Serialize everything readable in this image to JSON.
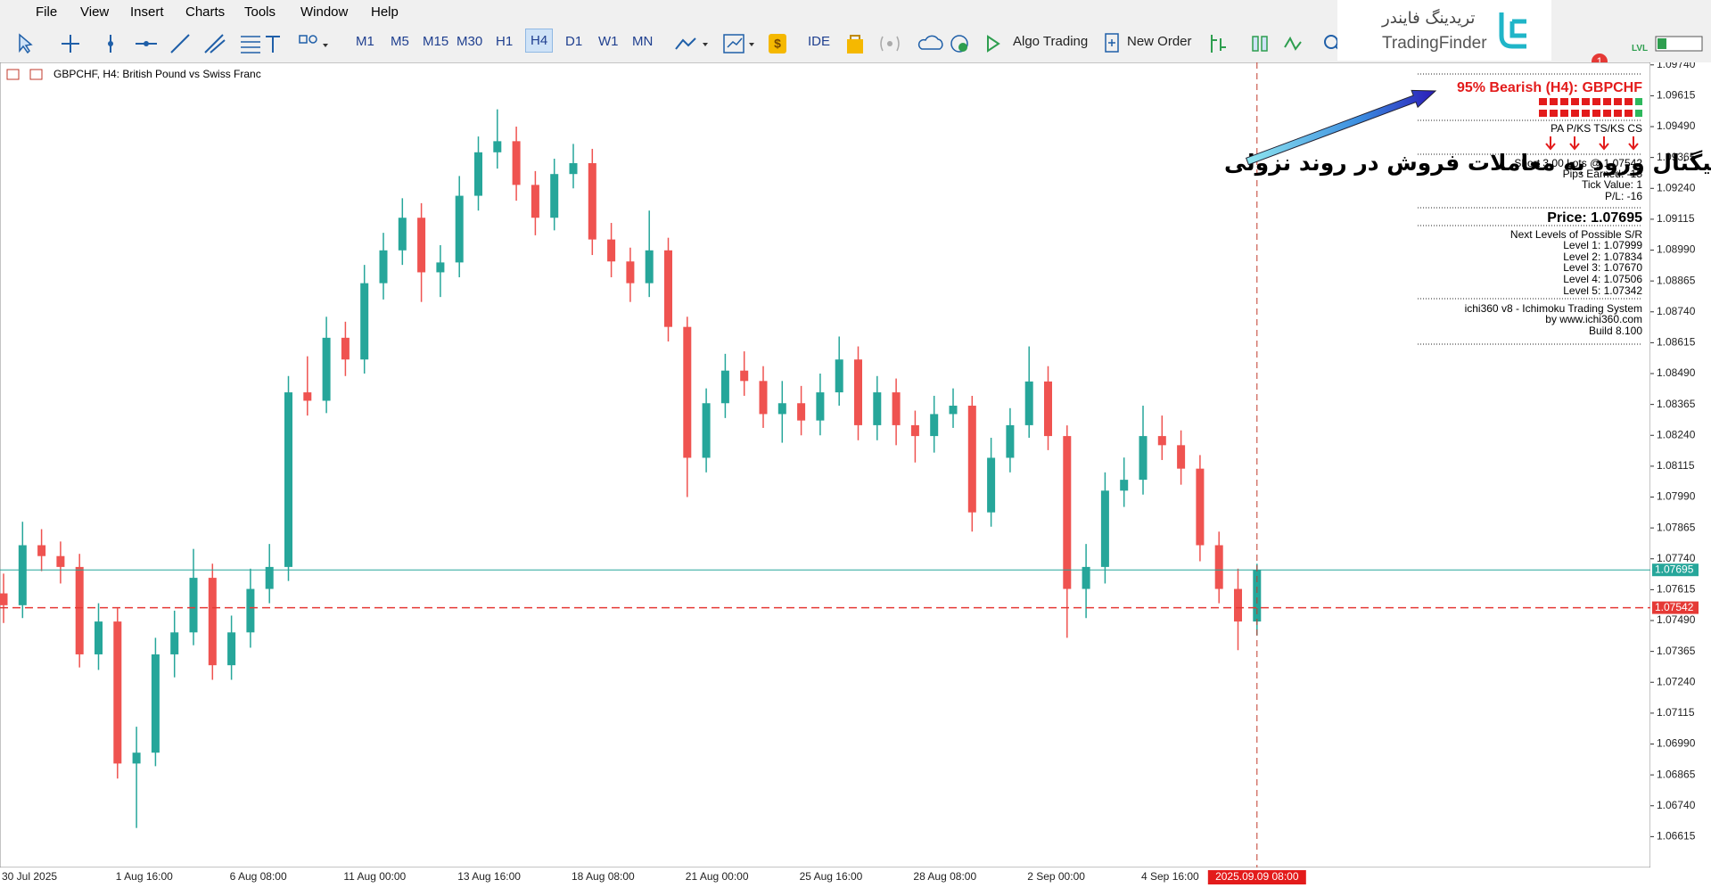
{
  "menu": [
    "File",
    "View",
    "Insert",
    "Charts",
    "Tools",
    "Window",
    "Help"
  ],
  "toolbar": {
    "timeframes": [
      "M1",
      "M5",
      "M15",
      "M30",
      "H1",
      "H4",
      "D1",
      "W1",
      "MN"
    ],
    "buttons": [
      "IDE",
      "Algo Trading",
      "New Order"
    ],
    "notification_count": 1,
    "level_label": "LVL"
  },
  "logo": {
    "persian": "تریدینگ فایندر",
    "latin": "TradingFinder"
  },
  "annotation": "سیگنال ورود به معاملات فروش در روند نزولی",
  "indicator_panel": {
    "signal": "95% Bearish (H4): GBPCHF",
    "columns": "PA P/KS TS/KS CS",
    "position": [
      "Short 3.00 Lots @ 1.07542",
      "Pips Earned: -15",
      "Tick Value: 1",
      "P/L: -16"
    ],
    "price": "Price: 1.07695",
    "levels_title": "Next Levels of Possible S/R",
    "levels": [
      "Level 1: 1.07999",
      "Level 2: 1.07834",
      "Level 3: 1.07670",
      "Level 4: 1.07506",
      "Level 5: 1.07342"
    ],
    "footer": [
      "ichi360 v8 - Ichimoku Trading System",
      "by www.ichi360.com",
      "Build 8.100"
    ]
  },
  "chart_data": {
    "type": "candlestick",
    "title": "GBPCHF, H4:  British Pound vs Swiss Franc",
    "up_color": "#26a69a",
    "down_color": "#ef5350",
    "grid": false,
    "categories": [
      "30 Jul 2025",
      null,
      null,
      null,
      null,
      null,
      "1 Aug 16:00",
      null,
      null,
      null,
      null,
      null,
      "6 Aug 08:00",
      null,
      null,
      null,
      null,
      null,
      "11 Aug 00:00",
      null,
      null,
      null,
      null,
      null,
      "13 Aug 16:00",
      null,
      null,
      null,
      null,
      null,
      "18 Aug 08:00",
      null,
      null,
      null,
      null,
      null,
      "21 Aug 00:00",
      null,
      null,
      null,
      null,
      null,
      "25 Aug 16:00",
      null,
      null,
      null,
      null,
      null,
      "28 Aug 08:00",
      null,
      null,
      null,
      null,
      null,
      "2 Sep 00:00",
      null,
      null,
      null,
      null,
      null,
      "4 Sep 16:00",
      null,
      null,
      null,
      null,
      null,
      null
    ],
    "open": [
      1.076,
      1.07552,
      1.07795,
      1.07751,
      1.07707,
      1.07353,
      1.07486,
      1.06911,
      1.06955,
      1.07353,
      1.07442,
      1.07663,
      1.07309,
      1.07442,
      1.07618,
      1.07707,
      1.08414,
      1.0838,
      1.08635,
      1.08547,
      1.08856,
      1.08989,
      1.09121,
      1.089,
      1.0894,
      1.0921,
      1.09386,
      1.09431,
      1.09254,
      1.09121,
      1.09298,
      1.09342,
      1.09033,
      1.08944,
      1.08856,
      1.08989,
      1.08679,
      1.08149,
      1.0837,
      1.08502,
      1.0846,
      1.08326,
      1.0837,
      1.083,
      1.08414,
      1.08547,
      1.08281,
      1.08414,
      1.08281,
      1.08237,
      1.08326,
      1.0836,
      1.07928,
      1.08149,
      1.08281,
      1.08458,
      1.08237,
      1.07618,
      1.07707,
      1.08016,
      1.0806,
      1.08237,
      1.082,
      1.08105,
      1.07795,
      1.07618,
      1.07486
    ],
    "high": [
      1.0768,
      1.0789,
      1.0786,
      1.0781,
      1.0776,
      1.0756,
      1.0754,
      1.0706,
      1.0742,
      1.0753,
      1.0778,
      1.0772,
      1.0751,
      1.077,
      1.078,
      1.0848,
      1.0856,
      1.0872,
      1.087,
      1.0893,
      1.0906,
      1.092,
      1.0918,
      1.0901,
      1.0929,
      1.0945,
      1.0956,
      1.0949,
      1.0931,
      1.0936,
      1.0942,
      1.094,
      1.091,
      1.09,
      1.0915,
      1.0904,
      1.0872,
      1.0843,
      1.0857,
      1.0858,
      1.0852,
      1.0846,
      1.0844,
      1.0849,
      1.0864,
      1.086,
      1.0848,
      1.0847,
      1.0834,
      1.084,
      1.0843,
      1.084,
      1.0823,
      1.0835,
      1.086,
      1.0852,
      1.0828,
      1.078,
      1.0809,
      1.0815,
      1.0836,
      1.0832,
      1.0826,
      1.0816,
      1.0785,
      1.077,
      1.0772
    ],
    "low": [
      1.0748,
      1.075,
      1.0769,
      1.0764,
      1.073,
      1.0729,
      1.0685,
      1.0665,
      1.069,
      1.0726,
      1.0739,
      1.0725,
      1.0725,
      1.0738,
      1.0756,
      1.0765,
      1.0832,
      1.0833,
      1.0848,
      1.0849,
      1.0879,
      1.0893,
      1.0878,
      1.088,
      1.0888,
      1.0915,
      1.0932,
      1.0919,
      1.0905,
      1.0907,
      1.0924,
      1.0897,
      1.0888,
      1.0878,
      1.088,
      1.0862,
      1.0799,
      1.0809,
      1.0831,
      1.084,
      1.0827,
      1.0821,
      1.0824,
      1.0824,
      1.0836,
      1.0822,
      1.0822,
      1.082,
      1.0813,
      1.0817,
      1.0827,
      1.0785,
      1.0787,
      1.0809,
      1.0823,
      1.0818,
      1.0742,
      1.075,
      1.0764,
      1.0795,
      1.08,
      1.0814,
      1.0804,
      1.0773,
      1.0756,
      1.0737,
      1.0743
    ],
    "close": [
      1.07552,
      1.07795,
      1.07751,
      1.07707,
      1.07353,
      1.07486,
      1.06911,
      1.06955,
      1.07353,
      1.07442,
      1.07663,
      1.07309,
      1.07442,
      1.07618,
      1.07707,
      1.08414,
      1.0838,
      1.08635,
      1.08547,
      1.08856,
      1.08989,
      1.09121,
      1.089,
      1.0894,
      1.0921,
      1.09386,
      1.09431,
      1.09254,
      1.09121,
      1.09298,
      1.09342,
      1.09033,
      1.08944,
      1.08856,
      1.08989,
      1.08679,
      1.08149,
      1.0837,
      1.08502,
      1.0846,
      1.08326,
      1.0837,
      1.083,
      1.08414,
      1.08547,
      1.08281,
      1.08414,
      1.08281,
      1.08237,
      1.08326,
      1.0836,
      1.07928,
      1.08149,
      1.08281,
      1.08458,
      1.08237,
      1.07618,
      1.07707,
      1.08016,
      1.0806,
      1.08237,
      1.082,
      1.08105,
      1.07795,
      1.07618,
      1.07486,
      1.07695
    ],
    "ylim": [
      1.0649,
      1.0975
    ],
    "yticks": [
      {
        "value": 1.0974,
        "label": "1.09740"
      },
      1.09615,
      {
        "value": 1.0949,
        "label": "1.09490"
      },
      1.09365,
      {
        "value": 1.0924,
        "label": "1.09240"
      },
      1.09115,
      {
        "value": 1.0899,
        "label": "1.08990"
      },
      1.08865,
      {
        "value": 1.0874,
        "label": "1.08740"
      },
      1.08615,
      {
        "value": 1.0849,
        "label": "1.08490"
      },
      1.08365,
      {
        "value": 1.0824,
        "label": "1.08240"
      },
      1.08115,
      {
        "value": 1.0799,
        "label": "1.07990"
      },
      1.07865,
      {
        "value": 1.0774,
        "label": "1.07740"
      },
      1.07615,
      {
        "value": 1.0749,
        "label": "1.07490"
      },
      1.07365,
      {
        "value": 1.0724,
        "label": "1.07240"
      },
      1.07115,
      {
        "value": 1.0699,
        "label": "1.06990"
      },
      1.06865,
      {
        "value": 1.0674,
        "label": "1.06740"
      },
      1.06615
    ],
    "price_lines": [
      {
        "value": 1.07695,
        "color": "#26a69a",
        "dashed": false
      },
      {
        "value": 1.07542,
        "color": "#e53935",
        "dashed": true
      }
    ],
    "time_marker": "2025.09.09 08:00"
  }
}
